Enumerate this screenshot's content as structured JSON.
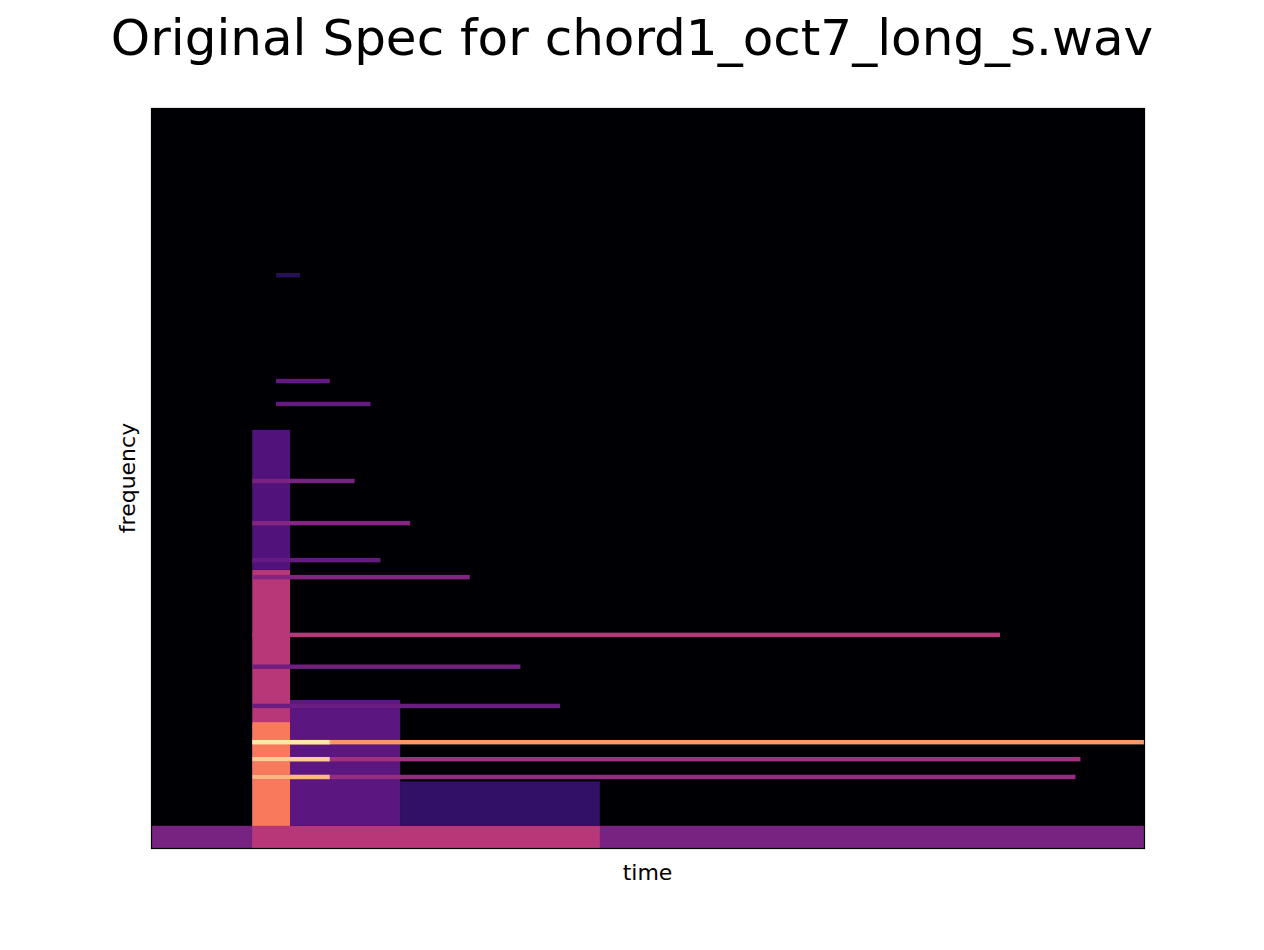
{
  "chart_data": {
    "type": "heatmap",
    "title": "Original Spec for chord1_oct7_long_s.wav",
    "x_label": "time",
    "y_label": "frequency",
    "tick_labels": false,
    "xlim": [
      0,
      100
    ],
    "ylim": [
      0,
      100
    ],
    "color": "magma",
    "clim": [
      0,
      1
    ],
    "cells": [
      {
        "t": [
          0,
          100
        ],
        "f": [
          0,
          100
        ],
        "value": 0
      },
      {
        "t": [
          0,
          100
        ],
        "f": [
          0,
          3
        ],
        "value": 0.35
      },
      {
        "t": [
          10.2,
          45.2
        ],
        "f": [
          0,
          3
        ],
        "value": 0.5
      },
      {
        "t": [
          25.1,
          45.2
        ],
        "f": [
          3,
          9
        ],
        "value": 0.18
      },
      {
        "t": [
          14.0,
          25.1
        ],
        "f": [
          3,
          20
        ],
        "value": 0.28
      },
      {
        "t": [
          10.2,
          14.0
        ],
        "f": [
          0,
          37.6
        ],
        "value": 0.5
      },
      {
        "t": [
          10.2,
          14.0
        ],
        "f": [
          3,
          17
        ],
        "value": 0.72
      },
      {
        "t": [
          10.2,
          14.0
        ],
        "f": [
          37.6,
          56.5
        ],
        "value": 0.25
      },
      {
        "t": [
          10.2,
          100
        ],
        "f": [
          14.0,
          14.6
        ],
        "value": 0.78
      },
      {
        "t": [
          10.2,
          18.0
        ],
        "f": [
          14.0,
          14.6
        ],
        "value": 0.95
      },
      {
        "t": [
          10.2,
          93.6
        ],
        "f": [
          11.7,
          12.3
        ],
        "value": 0.45
      },
      {
        "t": [
          10.2,
          18.0
        ],
        "f": [
          11.7,
          12.3
        ],
        "value": 0.9
      },
      {
        "t": [
          10.2,
          93.1
        ],
        "f": [
          9.3,
          9.9
        ],
        "value": 0.42
      },
      {
        "t": [
          10.2,
          18.0
        ],
        "f": [
          9.3,
          9.9
        ],
        "value": 0.85
      },
      {
        "t": [
          10.2,
          41.2
        ],
        "f": [
          18.9,
          19.5
        ],
        "value": 0.32
      },
      {
        "t": [
          10.2,
          37.2
        ],
        "f": [
          24.2,
          24.8
        ],
        "value": 0.33
      },
      {
        "t": [
          10.2,
          85.5
        ],
        "f": [
          28.5,
          29.1
        ],
        "value": 0.5
      },
      {
        "t": [
          10.2,
          32.1
        ],
        "f": [
          36.3,
          36.9
        ],
        "value": 0.38
      },
      {
        "t": [
          10.2,
          23.1
        ],
        "f": [
          38.6,
          39.2
        ],
        "value": 0.3
      },
      {
        "t": [
          10.2,
          26.1
        ],
        "f": [
          43.6,
          44.2
        ],
        "value": 0.38
      },
      {
        "t": [
          10.2,
          20.5
        ],
        "f": [
          49.3,
          49.9
        ],
        "value": 0.35
      },
      {
        "t": [
          12.6,
          22.1
        ],
        "f": [
          59.7,
          60.3
        ],
        "value": 0.3
      },
      {
        "t": [
          12.6,
          18.0
        ],
        "f": [
          62.8,
          63.4
        ],
        "value": 0.3
      },
      {
        "t": [
          12.6,
          15.0
        ],
        "f": [
          77.1,
          77.7
        ],
        "value": 0.15
      }
    ]
  }
}
